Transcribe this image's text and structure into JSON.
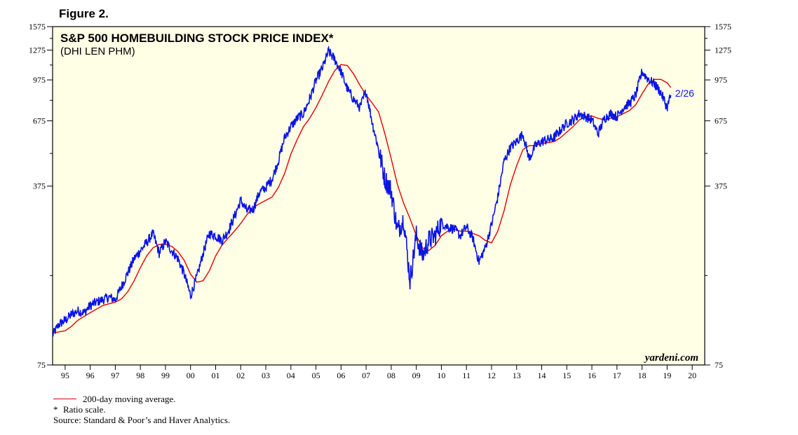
{
  "figure_label": "Figure 2.",
  "colors": {
    "background": "#ffffe6",
    "index_line": "#0a14e6",
    "ma_line": "#e00000",
    "end_label": "#0a14e6"
  },
  "chart_data": {
    "type": "line",
    "title": "S&P 500 HOMEBUILDING STOCK PRICE INDEX*",
    "subtitle": "(DHI LEN PHM)",
    "xlabel": "",
    "ylabel": "",
    "scale": "log",
    "xlim": [
      1994.5,
      2020.5
    ],
    "ylim": [
      75,
      1575
    ],
    "yticks": [
      75,
      375,
      675,
      975,
      1275,
      1575
    ],
    "ytick_labels": [
      "75",
      "375",
      "675",
      "975",
      "1275",
      "1575"
    ],
    "xtick_labels": [
      "95",
      "96",
      "97",
      "98",
      "99",
      "00",
      "01",
      "02",
      "03",
      "04",
      "05",
      "06",
      "07",
      "08",
      "09",
      "10",
      "11",
      "12",
      "13",
      "14",
      "15",
      "16",
      "17",
      "18",
      "19",
      "20"
    ],
    "grid": false,
    "legend": "bottom-left",
    "end_label": "2/26",
    "brand": "yardeni.com",
    "series": [
      {
        "name": "S&P 500 Homebuilding Stock Price Index",
        "color": "#0a14e6",
        "x": [
          1994.5,
          1994.75,
          1995.0,
          1995.25,
          1995.5,
          1995.75,
          1996.0,
          1996.25,
          1996.5,
          1996.75,
          1997.0,
          1997.25,
          1997.5,
          1997.75,
          1998.0,
          1998.25,
          1998.5,
          1998.75,
          1999.0,
          1999.25,
          1999.5,
          1999.75,
          2000.0,
          2000.25,
          2000.5,
          2000.75,
          2001.0,
          2001.25,
          2001.5,
          2001.75,
          2002.0,
          2002.25,
          2002.5,
          2002.75,
          2003.0,
          2003.25,
          2003.5,
          2003.75,
          2004.0,
          2004.25,
          2004.5,
          2004.75,
          2005.0,
          2005.25,
          2005.5,
          2005.75,
          2006.0,
          2006.25,
          2006.5,
          2006.75,
          2007.0,
          2007.25,
          2007.5,
          2007.75,
          2008.0,
          2008.25,
          2008.5,
          2008.75,
          2009.0,
          2009.25,
          2009.5,
          2009.75,
          2010.0,
          2010.25,
          2010.5,
          2010.75,
          2011.0,
          2011.25,
          2011.5,
          2011.75,
          2012.0,
          2012.25,
          2012.5,
          2012.75,
          2013.0,
          2013.25,
          2013.5,
          2013.75,
          2014.0,
          2014.25,
          2014.5,
          2014.75,
          2015.0,
          2015.25,
          2015.5,
          2015.75,
          2016.0,
          2016.25,
          2016.5,
          2016.75,
          2017.0,
          2017.25,
          2017.5,
          2017.75,
          2018.0,
          2018.25,
          2018.5,
          2018.75,
          2019.0,
          2019.15
        ],
        "values": [
          98,
          108,
          112,
          118,
          122,
          120,
          128,
          132,
          135,
          138,
          135,
          152,
          172,
          195,
          210,
          225,
          245,
          205,
          228,
          210,
          195,
          170,
          140,
          165,
          205,
          245,
          240,
          230,
          250,
          285,
          330,
          300,
          305,
          355,
          370,
          400,
          470,
          580,
          640,
          690,
          720,
          820,
          970,
          1080,
          1260,
          1170,
          1050,
          900,
          820,
          760,
          880,
          660,
          520,
          400,
          360,
          250,
          280,
          160,
          240,
          200,
          230,
          240,
          270,
          260,
          255,
          240,
          260,
          235,
          190,
          215,
          265,
          340,
          470,
          530,
          560,
          600,
          480,
          540,
          560,
          570,
          580,
          620,
          660,
          680,
          720,
          700,
          680,
          600,
          690,
          720,
          700,
          760,
          790,
          850,
          1050,
          980,
          940,
          870,
          760,
          850
        ]
      },
      {
        "name": "200-day moving average.",
        "color": "#e00000",
        "x": [
          1994.5,
          1994.75,
          1995.0,
          1995.25,
          1995.5,
          1995.75,
          1996.0,
          1996.25,
          1996.5,
          1996.75,
          1997.0,
          1997.25,
          1997.5,
          1997.75,
          1998.0,
          1998.25,
          1998.5,
          1998.75,
          1999.0,
          1999.25,
          1999.5,
          1999.75,
          2000.0,
          2000.25,
          2000.5,
          2000.75,
          2001.0,
          2001.25,
          2001.5,
          2001.75,
          2002.0,
          2002.25,
          2002.5,
          2002.75,
          2003.0,
          2003.25,
          2003.5,
          2003.75,
          2004.0,
          2004.25,
          2004.5,
          2004.75,
          2005.0,
          2005.25,
          2005.5,
          2005.75,
          2006.0,
          2006.25,
          2006.5,
          2006.75,
          2007.0,
          2007.25,
          2007.5,
          2007.75,
          2008.0,
          2008.25,
          2008.5,
          2008.75,
          2009.0,
          2009.25,
          2009.5,
          2009.75,
          2010.0,
          2010.25,
          2010.5,
          2010.75,
          2011.0,
          2011.25,
          2011.5,
          2011.75,
          2012.0,
          2012.25,
          2012.5,
          2012.75,
          2013.0,
          2013.25,
          2013.5,
          2013.75,
          2014.0,
          2014.25,
          2014.5,
          2014.75,
          2015.0,
          2015.25,
          2015.5,
          2015.75,
          2016.0,
          2016.25,
          2016.5,
          2016.75,
          2017.0,
          2017.25,
          2017.5,
          2017.75,
          2018.0,
          2018.25,
          2018.5,
          2018.75,
          2019.0,
          2019.15
        ],
        "values": [
          100,
          101,
          102,
          106,
          112,
          116,
          120,
          124,
          128,
          130,
          132,
          136,
          145,
          160,
          180,
          200,
          215,
          222,
          222,
          218,
          208,
          192,
          170,
          158,
          160,
          175,
          200,
          220,
          235,
          250,
          268,
          290,
          310,
          320,
          330,
          340,
          370,
          420,
          500,
          570,
          640,
          690,
          760,
          850,
          960,
          1060,
          1120,
          1110,
          1030,
          930,
          850,
          790,
          730,
          600,
          480,
          380,
          320,
          280,
          240,
          215,
          210,
          220,
          240,
          250,
          255,
          250,
          250,
          245,
          240,
          230,
          225,
          250,
          300,
          380,
          450,
          520,
          540,
          540,
          550,
          555,
          560,
          580,
          610,
          640,
          680,
          700,
          705,
          690,
          680,
          690,
          700,
          720,
          740,
          780,
          860,
          940,
          980,
          980,
          950,
          910
        ]
      }
    ]
  },
  "footer": {
    "legend_label": "200-day moving average.",
    "note_star": "*",
    "note_text": "Ratio scale.",
    "source": "Source: Standard & Poor’s and Haver Analytics."
  }
}
